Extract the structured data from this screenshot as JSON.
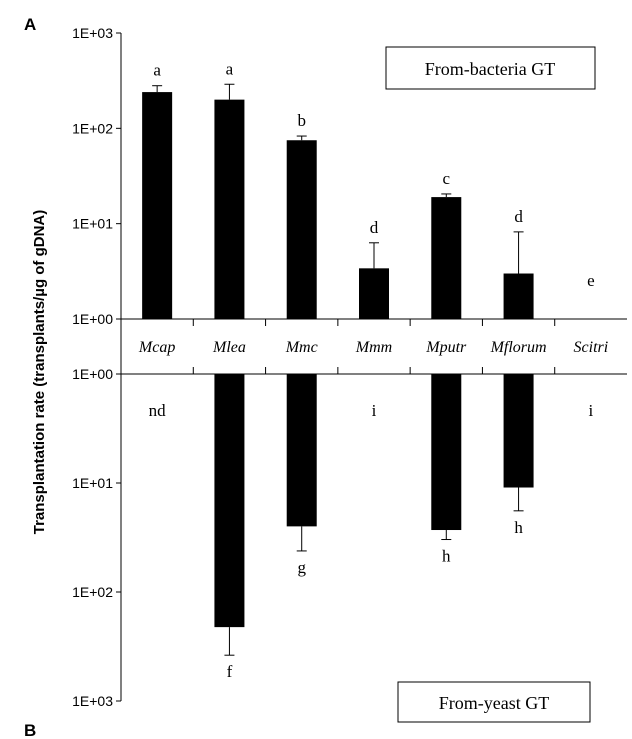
{
  "figure": {
    "ylabel": "Transplantation rate (transplants/µg of gDNA)",
    "panel_a": "A",
    "panel_b": "B",
    "categories": [
      "Mcap",
      "Mlea",
      "Mmc",
      "Mmm",
      "Mputr",
      "Mflorum",
      "Scitri"
    ]
  },
  "chart_data": [
    {
      "type": "bar",
      "panel": "A",
      "label": "From-bacteria GT",
      "scale": "log",
      "ylim": [
        1,
        1000
      ],
      "yticks": [
        "1E+00",
        "1E+01",
        "1E+02",
        "1E+03"
      ],
      "categories": [
        "Mcap",
        "Mlea",
        "Mmc",
        "Mmm",
        "Mputr",
        "Mflorum",
        "Scitri"
      ],
      "values": [
        240,
        200,
        75,
        3.4,
        19,
        3,
        null
      ],
      "error_upper": [
        280,
        290,
        83,
        6.3,
        20.5,
        8.2,
        null
      ],
      "letters": [
        "a",
        "a",
        "b",
        "d",
        "c",
        "d",
        "e"
      ]
    },
    {
      "type": "bar",
      "panel": "B",
      "label": "From-yeast GT",
      "scale": "log",
      "direction": "downward",
      "ylim": [
        1,
        1000
      ],
      "yticks": [
        "1E+00",
        "1E+01",
        "1E+02",
        "1E+03"
      ],
      "categories": [
        "Mcap",
        "Mlea",
        "Mmc",
        "Mmm",
        "Mputr",
        "Mflorum",
        "Scitri"
      ],
      "values": [
        null,
        210,
        25,
        null,
        27,
        11,
        null
      ],
      "error_upper": [
        null,
        380,
        42,
        null,
        33,
        18,
        null
      ],
      "letters": [
        "nd",
        "f",
        "g",
        "i",
        "h",
        "h",
        "i"
      ]
    }
  ]
}
